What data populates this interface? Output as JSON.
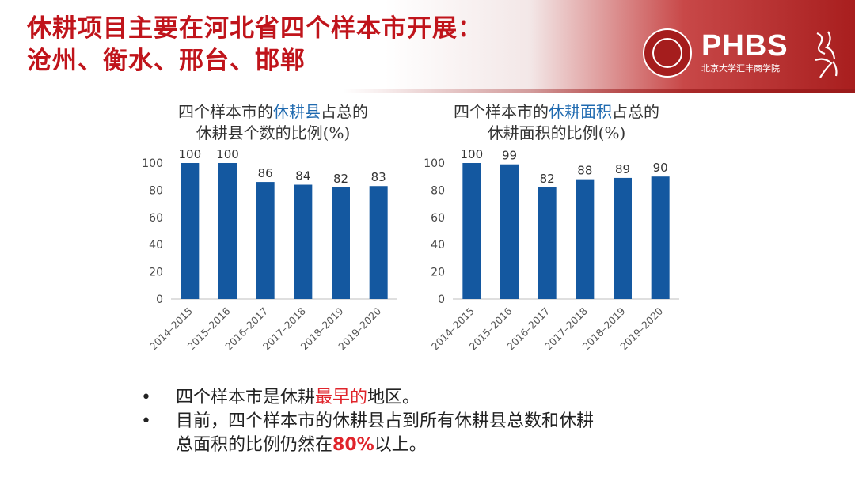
{
  "header": {
    "title_line1": "休耕项目主要在河北省四个样本市开展：",
    "title_line2": "沧州、衡水、邢台、邯郸",
    "logo_word": "PHBS",
    "logo_subtitle": "北京大学汇丰商学院"
  },
  "charts": {
    "left_title_pre": "四个样本市的",
    "left_title_hl": "休耕县",
    "left_title_post": "占总的",
    "left_title_line2": "休耕县个数的比例(%)",
    "right_title_pre": "四个样本市的",
    "right_title_hl": "休耕面积",
    "right_title_post": "占总的",
    "right_title_line2": "休耕面积的比例(%)"
  },
  "chart_data": [
    {
      "type": "bar",
      "title": "四个样本市的休耕县占总的休耕县个数的比例(%)",
      "categories": [
        "2014–2015",
        "2015–2016",
        "2016–2017",
        "2017–2018",
        "2018–2019",
        "2019–2020"
      ],
      "values": [
        100,
        100,
        86,
        84,
        82,
        83
      ],
      "ylim": [
        0,
        100
      ],
      "yticks": [
        0,
        20,
        40,
        60,
        80,
        100
      ],
      "bar_color": "#1458a0",
      "grid": false
    },
    {
      "type": "bar",
      "title": "四个样本市的休耕面积占总的休耕面积的比例(%)",
      "categories": [
        "2014–2015",
        "2015–2016",
        "2016–2017",
        "2017–2018",
        "2018–2019",
        "2019–2020"
      ],
      "values": [
        100,
        99,
        82,
        88,
        89,
        90
      ],
      "ylim": [
        0,
        100
      ],
      "yticks": [
        0,
        20,
        40,
        60,
        80,
        100
      ],
      "bar_color": "#1458a0",
      "grid": false
    }
  ],
  "bullets": {
    "marker": "•",
    "b1_pre": "四个样本市是休耕",
    "b1_red": "最早的",
    "b1_post": "地区。",
    "b2_line1": "目前，四个样本市的休耕县占到所有休耕县总数和休耕",
    "b2_line2_pre": "总面积的比例仍然在",
    "b2_red": "80%",
    "b2_post": "以上。"
  },
  "colors": {
    "title_red": "#c0141b",
    "bar_blue": "#1458a0",
    "highlight_blue": "#1f6ab0",
    "emphasis_red": "#e0242b"
  }
}
